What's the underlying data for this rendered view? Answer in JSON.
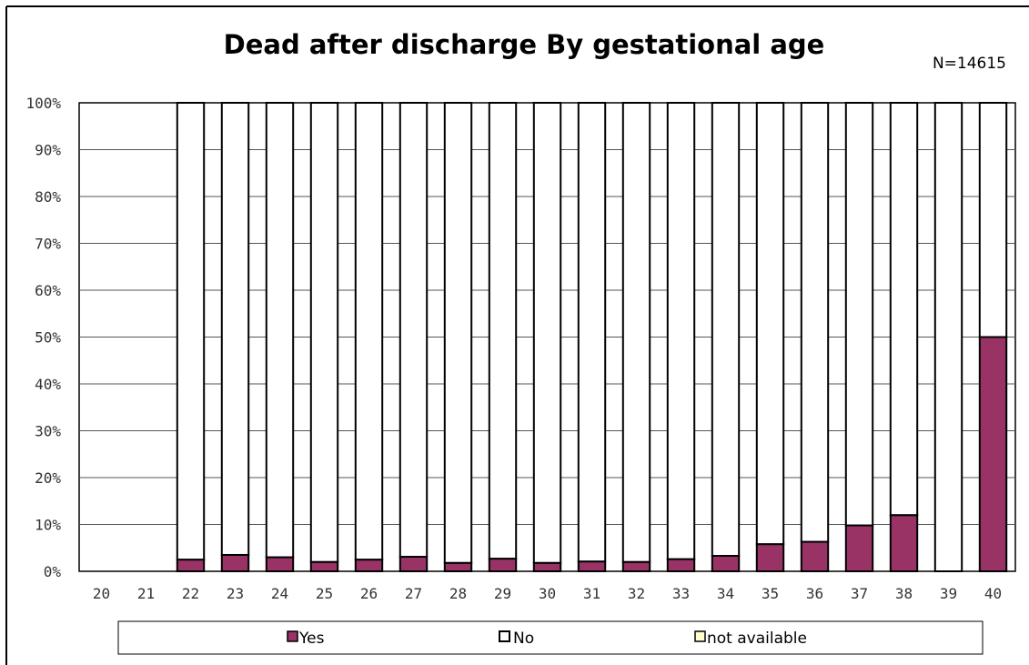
{
  "chart_data": {
    "type": "bar",
    "stacked": true,
    "percent_stacked": true,
    "title": "Dead after discharge By gestational age",
    "subtitle": "N=14615",
    "xlabel": "",
    "ylabel": "",
    "categories": [
      "20",
      "21",
      "22",
      "23",
      "24",
      "25",
      "26",
      "27",
      "28",
      "29",
      "30",
      "31",
      "32",
      "33",
      "34",
      "35",
      "36",
      "37",
      "38",
      "39",
      "40"
    ],
    "y_ticks": [
      "0%",
      "10%",
      "20%",
      "30%",
      "40%",
      "50%",
      "60%",
      "70%",
      "80%",
      "90%",
      "100%"
    ],
    "ylim": [
      0,
      100
    ],
    "grid": true,
    "legend_position": "bottom",
    "series": [
      {
        "name": "Yes",
        "color": "#993366",
        "values": [
          null,
          null,
          2.5,
          3.5,
          3.0,
          2.0,
          2.5,
          3.1,
          1.8,
          2.7,
          1.8,
          2.1,
          2.0,
          2.6,
          3.3,
          5.8,
          6.3,
          9.8,
          12.0,
          0.0,
          50.0
        ]
      },
      {
        "name": "No",
        "color": "#ffffff",
        "values": [
          null,
          null,
          97.5,
          96.5,
          97.0,
          98.0,
          97.5,
          96.9,
          98.2,
          97.3,
          98.2,
          97.9,
          98.0,
          97.4,
          96.7,
          94.2,
          93.7,
          90.2,
          88.0,
          100.0,
          50.0
        ]
      },
      {
        "name": "not available",
        "color": "#ffffcc",
        "values": [
          null,
          null,
          0,
          0,
          0,
          0,
          0,
          0,
          0,
          0,
          0,
          0,
          0,
          0,
          0,
          0,
          0,
          0,
          0,
          0,
          0
        ]
      }
    ]
  }
}
